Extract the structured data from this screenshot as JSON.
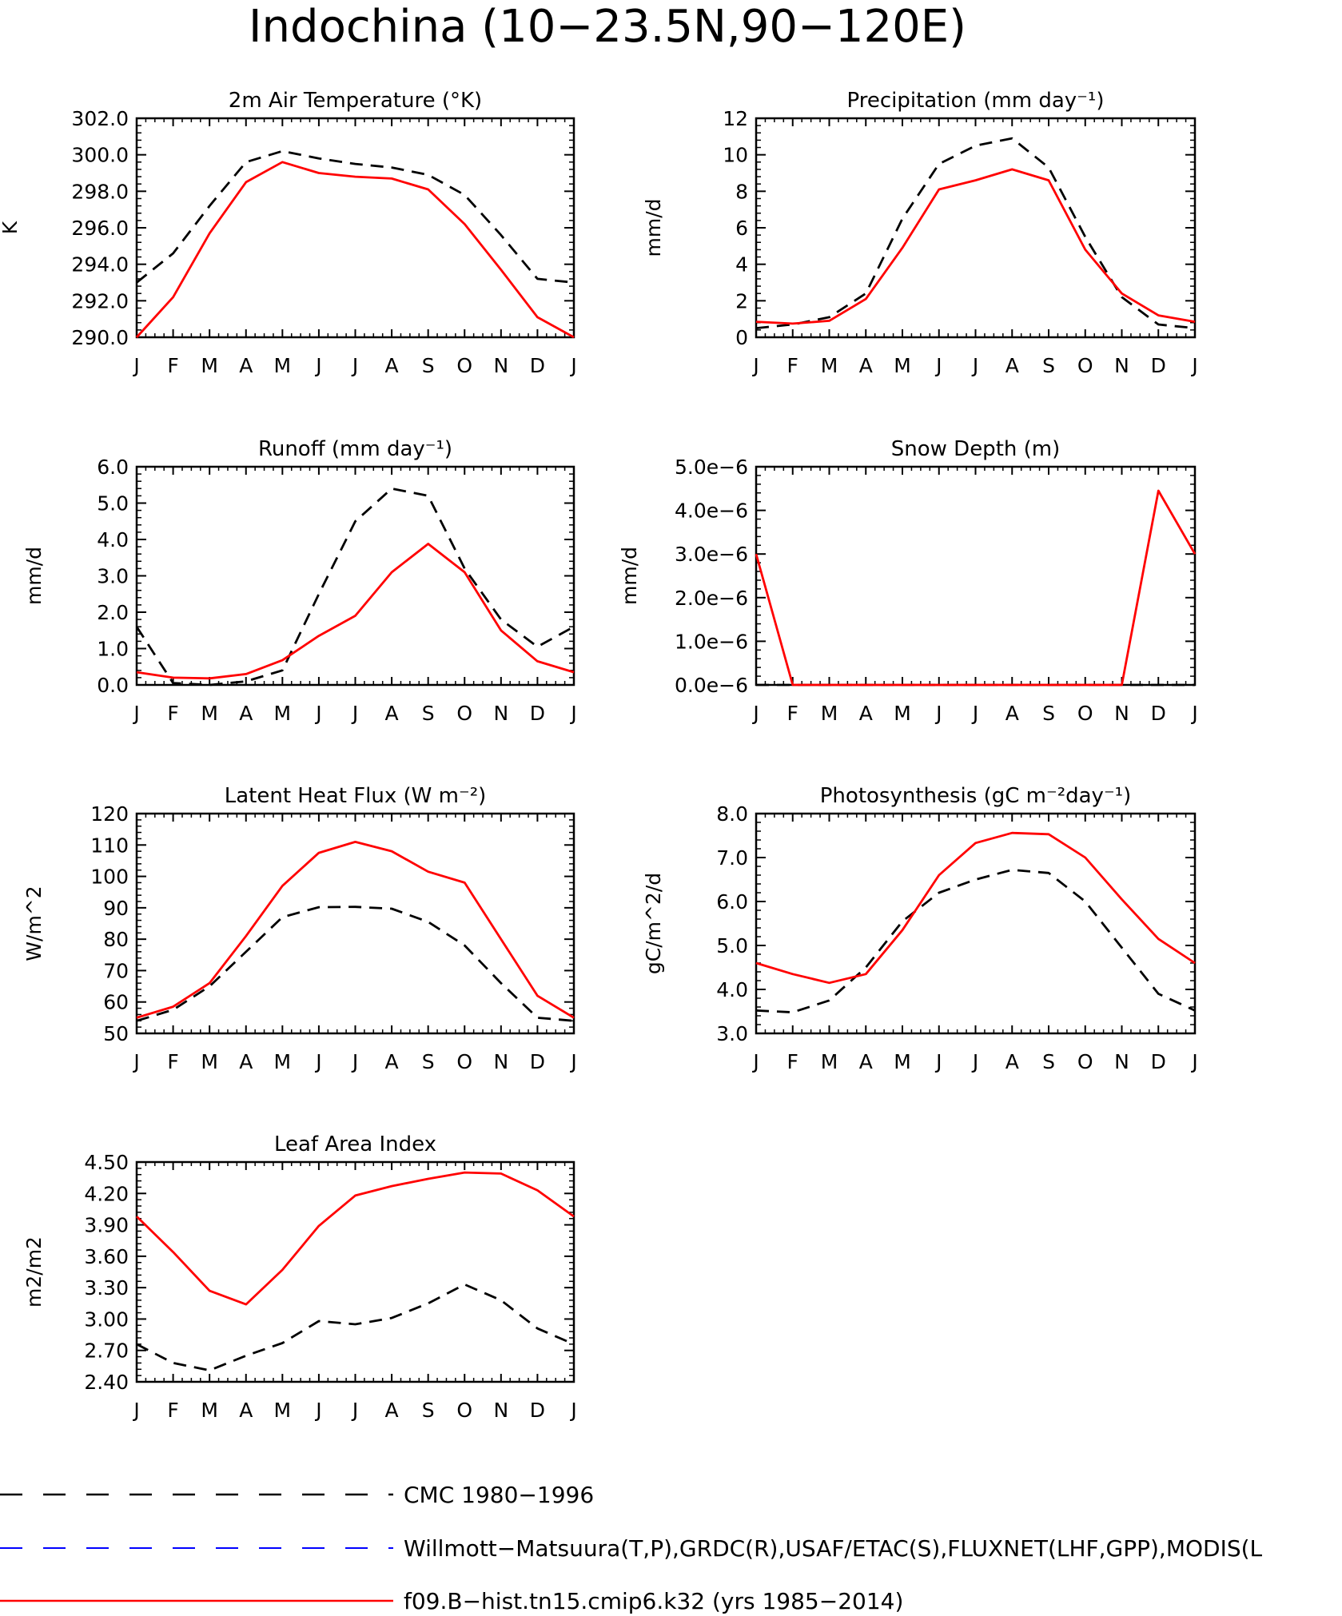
{
  "figure": {
    "title": "Indochina (10−23.5N,90−120E)"
  },
  "legend": {
    "entries": [
      {
        "label": "CMC 1980−1996",
        "color": "#000000",
        "dash": "dashed"
      },
      {
        "label": "Willmott−Matsuura(T,P),GRDC(R),USAF/ETAC(S),FLUXNET(LHF,GPP),MODIS(L",
        "color": "#0000ff",
        "dash": "dashed"
      },
      {
        "label": "f09.B−hist.tn15.cmip6.k32 (yrs 1985−2014)",
        "color": "#ff0000",
        "dash": "solid"
      }
    ]
  },
  "chart_data": [
    {
      "type": "line",
      "title": "2m Air Temperature (°K)",
      "ylabel": "K",
      "x": [
        "J",
        "F",
        "M",
        "A",
        "M",
        "J",
        "J",
        "A",
        "S",
        "O",
        "N",
        "D",
        "J"
      ],
      "ylim": [
        290,
        302
      ],
      "yticks": [
        "290.0",
        "292.0",
        "294.0",
        "296.0",
        "298.0",
        "300.0",
        "302.0"
      ],
      "ytick_values": [
        290,
        292,
        294,
        296,
        298,
        300,
        302
      ],
      "series": [
        {
          "name": "CMC 1980−1996",
          "color": "#000000",
          "dash": "dashed",
          "values": [
            293.0,
            294.6,
            297.2,
            299.6,
            300.2,
            299.8,
            299.5,
            299.3,
            298.9,
            297.8,
            295.6,
            293.2,
            293.0
          ]
        },
        {
          "name": "f09.B−hist.tn15.cmip6.k32 (yrs 1985−2014)",
          "color": "#ff0000",
          "dash": "solid",
          "values": [
            290.0,
            292.2,
            295.7,
            298.5,
            299.6,
            299.0,
            298.8,
            298.7,
            298.1,
            296.2,
            293.7,
            291.1,
            290.0
          ]
        }
      ]
    },
    {
      "type": "line",
      "title": "Precipitation (mm day⁻¹)",
      "ylabel": "mm/d",
      "x": [
        "J",
        "F",
        "M",
        "A",
        "M",
        "J",
        "J",
        "A",
        "S",
        "O",
        "N",
        "D",
        "J"
      ],
      "ylim": [
        0,
        12
      ],
      "yticks": [
        "0",
        "2",
        "4",
        "6",
        "8",
        "10",
        "12"
      ],
      "ytick_values": [
        0,
        2,
        4,
        6,
        8,
        10,
        12
      ],
      "series": [
        {
          "name": "CMC 1980−1996",
          "color": "#000000",
          "dash": "dashed",
          "values": [
            0.5,
            0.7,
            1.1,
            2.4,
            6.5,
            9.5,
            10.5,
            10.9,
            9.3,
            5.5,
            2.2,
            0.7,
            0.5
          ]
        },
        {
          "name": "f09.B−hist.tn15.cmip6.k32 (yrs 1985−2014)",
          "color": "#ff0000",
          "dash": "solid",
          "values": [
            0.85,
            0.75,
            0.9,
            2.1,
            4.9,
            8.1,
            8.6,
            9.2,
            8.6,
            4.8,
            2.4,
            1.2,
            0.85
          ]
        }
      ]
    },
    {
      "type": "line",
      "title": "Runoff (mm day⁻¹)",
      "ylabel": "mm/d",
      "x": [
        "J",
        "F",
        "M",
        "A",
        "M",
        "J",
        "J",
        "A",
        "S",
        "O",
        "N",
        "D",
        "J"
      ],
      "ylim": [
        0,
        6
      ],
      "yticks": [
        "0.0",
        "1.0",
        "2.0",
        "3.0",
        "4.0",
        "5.0",
        "6.0"
      ],
      "ytick_values": [
        0,
        1,
        2,
        3,
        4,
        5,
        6
      ],
      "series": [
        {
          "name": "CMC 1980−1996",
          "color": "#000000",
          "dash": "dashed",
          "values": [
            1.6,
            0.05,
            0.0,
            0.1,
            0.4,
            2.5,
            4.5,
            5.4,
            5.2,
            3.2,
            1.8,
            1.05,
            1.6
          ]
        },
        {
          "name": "f09.B−hist.tn15.cmip6.k32 (yrs 1985−2014)",
          "color": "#ff0000",
          "dash": "solid",
          "values": [
            0.35,
            0.2,
            0.18,
            0.3,
            0.68,
            1.35,
            1.9,
            3.1,
            3.88,
            3.1,
            1.5,
            0.65,
            0.35
          ]
        }
      ]
    },
    {
      "type": "line",
      "title": "Snow Depth (m)",
      "ylabel": "mm/d",
      "x": [
        "J",
        "F",
        "M",
        "A",
        "M",
        "J",
        "J",
        "A",
        "S",
        "O",
        "N",
        "D",
        "J"
      ],
      "ylim": [
        0,
        5
      ],
      "value_scale": "e−6",
      "yticks": [
        "0.0e−6",
        "1.0e−6",
        "2.0e−6",
        "3.0e−6",
        "4.0e−6",
        "5.0e−6"
      ],
      "ytick_values": [
        0,
        1,
        2,
        3,
        4,
        5
      ],
      "series": [
        {
          "name": "CMC 1980−1996",
          "color": "#000000",
          "dash": "dashed",
          "values": [
            0,
            0,
            0,
            0,
            0,
            0,
            0,
            0,
            0,
            0,
            0,
            0,
            0
          ]
        },
        {
          "name": "f09.B−hist.tn15.cmip6.k32 (yrs 1985−2014)",
          "color": "#ff0000",
          "dash": "solid",
          "values": [
            3.0,
            0,
            0,
            0,
            0,
            0,
            0,
            0,
            0,
            0,
            0,
            4.45,
            3.0
          ]
        }
      ]
    },
    {
      "type": "line",
      "title": "Latent Heat Flux (W m⁻²)",
      "ylabel": "W/m^2",
      "x": [
        "J",
        "F",
        "M",
        "A",
        "M",
        "J",
        "J",
        "A",
        "S",
        "O",
        "N",
        "D",
        "J"
      ],
      "ylim": [
        50,
        120
      ],
      "yticks": [
        "50",
        "60",
        "70",
        "80",
        "90",
        "100",
        "110",
        "120"
      ],
      "ytick_values": [
        50,
        60,
        70,
        80,
        90,
        100,
        110,
        120
      ],
      "series": [
        {
          "name": "CMC 1980−1996",
          "color": "#000000",
          "dash": "dashed",
          "values": [
            54,
            57.5,
            65,
            76,
            87,
            90.2,
            90.3,
            89.7,
            85.5,
            78,
            66,
            55,
            54
          ]
        },
        {
          "name": "f09.B−hist.tn15.cmip6.k32 (yrs 1985−2014)",
          "color": "#ff0000",
          "dash": "solid",
          "values": [
            55,
            58.5,
            66,
            81,
            97,
            107.5,
            111,
            108,
            101.5,
            98,
            80,
            62,
            55
          ]
        }
      ]
    },
    {
      "type": "line",
      "title": "Photosynthesis (gC m⁻²day⁻¹)",
      "ylabel": "gC/m^2/d",
      "x": [
        "J",
        "F",
        "M",
        "A",
        "M",
        "J",
        "J",
        "A",
        "S",
        "O",
        "N",
        "D",
        "J"
      ],
      "ylim": [
        3,
        8
      ],
      "yticks": [
        "3.0",
        "4.0",
        "5.0",
        "6.0",
        "7.0",
        "8.0"
      ],
      "ytick_values": [
        3,
        4,
        5,
        6,
        7,
        8
      ],
      "series": [
        {
          "name": "CMC 1980−1996",
          "color": "#000000",
          "dash": "dashed",
          "values": [
            3.52,
            3.48,
            3.75,
            4.5,
            5.55,
            6.2,
            6.5,
            6.72,
            6.65,
            6.0,
            4.95,
            3.9,
            3.52
          ]
        },
        {
          "name": "f09.B−hist.tn15.cmip6.k32 (yrs 1985−2014)",
          "color": "#ff0000",
          "dash": "solid",
          "values": [
            4.6,
            4.35,
            4.15,
            4.35,
            5.35,
            6.6,
            7.33,
            7.56,
            7.53,
            7.0,
            6.05,
            5.15,
            4.6
          ]
        }
      ]
    },
    {
      "type": "line",
      "title": "Leaf Area Index",
      "ylabel": "m2/m2",
      "x": [
        "J",
        "F",
        "M",
        "A",
        "M",
        "J",
        "J",
        "A",
        "S",
        "O",
        "N",
        "D",
        "J"
      ],
      "ylim": [
        2.4,
        4.5
      ],
      "yticks": [
        "2.40",
        "2.70",
        "3.00",
        "3.30",
        "3.60",
        "3.90",
        "4.20",
        "4.50"
      ],
      "ytick_values": [
        2.4,
        2.7,
        3.0,
        3.3,
        3.6,
        3.9,
        4.2,
        4.5
      ],
      "series": [
        {
          "name": "CMC 1980−1996",
          "color": "#000000",
          "dash": "dashed",
          "values": [
            2.76,
            2.58,
            2.51,
            2.65,
            2.77,
            2.98,
            2.95,
            3.01,
            3.15,
            3.33,
            3.18,
            2.91,
            2.76
          ]
        },
        {
          "name": "f09.B−hist.tn15.cmip6.k32 (yrs 1985−2014)",
          "color": "#ff0000",
          "dash": "solid",
          "values": [
            3.98,
            3.64,
            3.27,
            3.14,
            3.47,
            3.89,
            4.18,
            4.27,
            4.34,
            4.4,
            4.39,
            4.23,
            3.98
          ]
        }
      ]
    }
  ]
}
